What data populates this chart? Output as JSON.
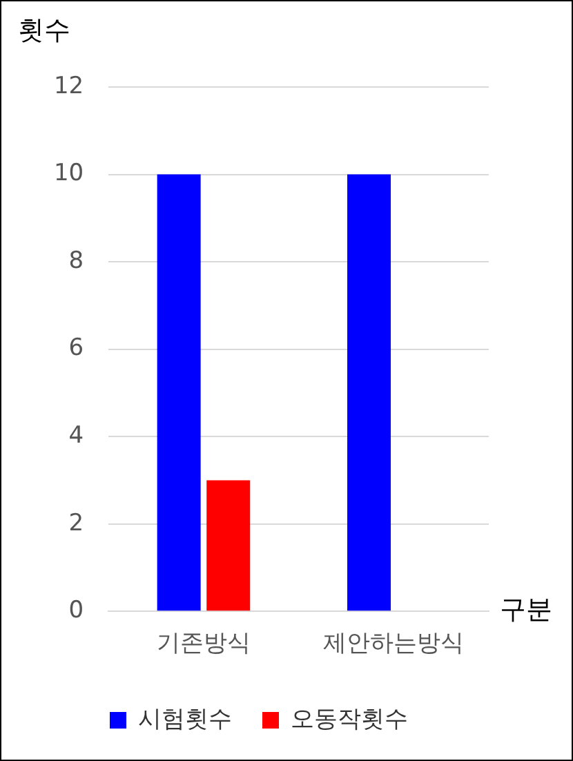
{
  "chart_data": {
    "type": "bar",
    "ylabel": "횟수",
    "xlabel": "구분",
    "categories": [
      "기존방식",
      "제안하는방식"
    ],
    "series": [
      {
        "name": "시험횟수",
        "color": "#0000ff",
        "values": [
          10,
          10
        ]
      },
      {
        "name": "오동작횟수",
        "color": "#ff0000",
        "values": [
          3,
          0
        ]
      }
    ],
    "ylim": [
      0,
      12
    ],
    "yticks": [
      0,
      2,
      4,
      6,
      8,
      10,
      12
    ],
    "grid": "y",
    "legend": "bottom"
  }
}
